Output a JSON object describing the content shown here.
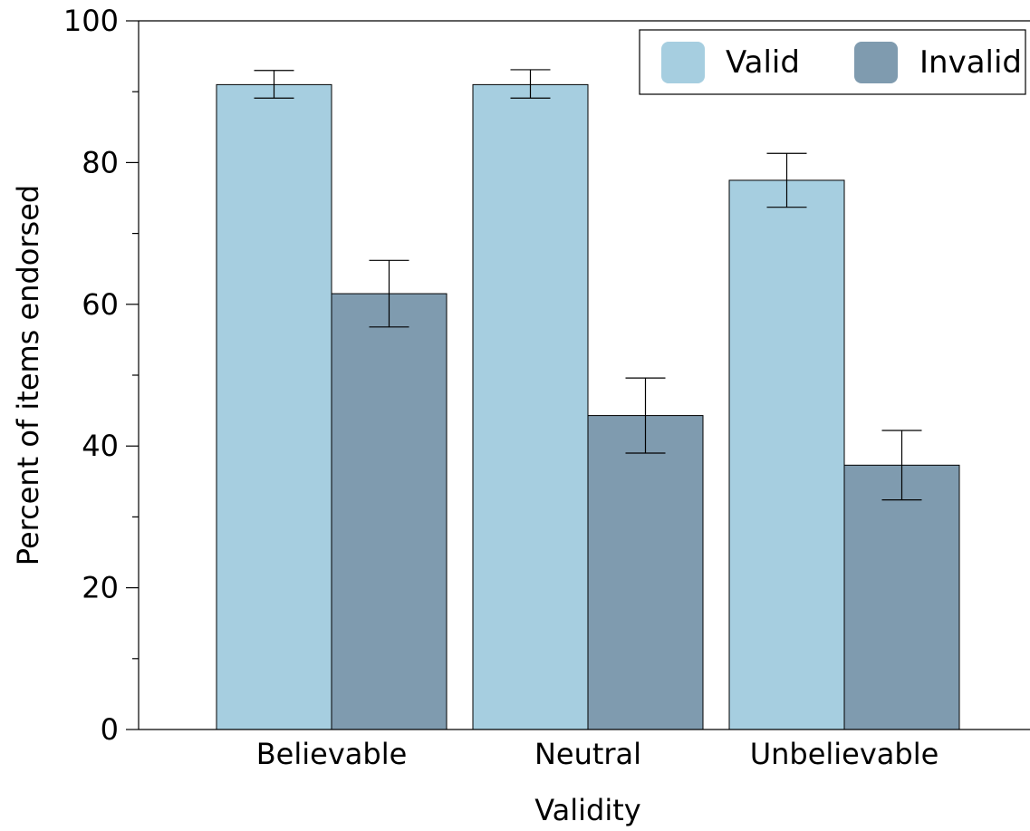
{
  "chart_data": {
    "type": "bar",
    "title": "",
    "xlabel": "Validity",
    "ylabel": "Percent of items endorsed",
    "categories": [
      "Believable",
      "Neutral",
      "Unbelievable"
    ],
    "series": [
      {
        "name": "Valid",
        "color": "#a6cee0",
        "values": [
          91,
          91,
          77.5
        ],
        "err_low": [
          89.1,
          89.1,
          73.7
        ],
        "err_high": [
          93.0,
          93.1,
          81.3
        ]
      },
      {
        "name": "Invalid",
        "color": "#7f9baf",
        "values": [
          61.5,
          44.3,
          37.3
        ],
        "err_low": [
          56.8,
          39.0,
          32.4
        ],
        "err_high": [
          66.2,
          49.6,
          42.2
        ]
      }
    ],
    "ylim": [
      0,
      100
    ],
    "yticks": [
      0,
      20,
      40,
      60,
      80,
      100
    ],
    "y_minor_ticks": [
      10,
      30,
      50,
      70,
      90
    ],
    "ytick_labels": [
      "0",
      "20",
      "40",
      "60",
      "80",
      "100"
    ],
    "grid": false,
    "legend_position": "top-right"
  }
}
